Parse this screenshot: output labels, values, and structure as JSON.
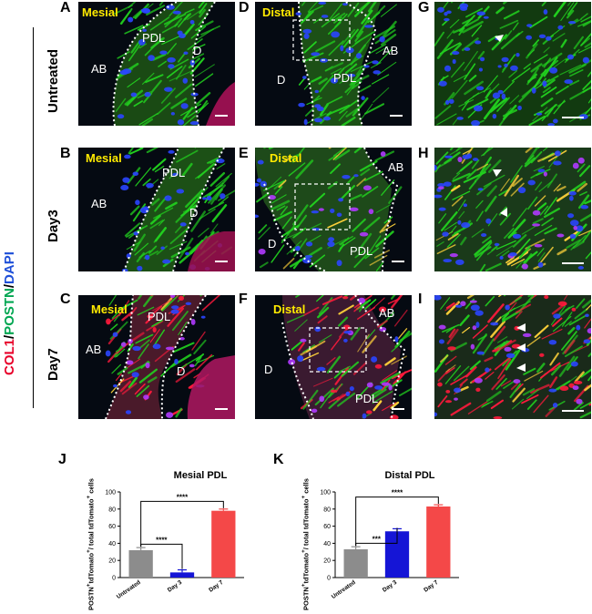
{
  "figure": {
    "stain": [
      {
        "text": "COL1",
        "color": "#e8002a"
      },
      {
        "text": "/",
        "color": "#000000"
      },
      {
        "text": "POSTN",
        "color": "#00a651"
      },
      {
        "text": "/",
        "color": "#000000"
      },
      {
        "text": "DAPI",
        "color": "#1e4fd8"
      }
    ],
    "rows": [
      "Untreated",
      "Day3",
      "Day7"
    ],
    "panels": {
      "A": {
        "letter": "A",
        "side": "Mesial",
        "labels": [
          "PDL",
          "AB",
          "D"
        ]
      },
      "B": {
        "letter": "B",
        "side": "Mesial",
        "labels": [
          "PDL",
          "AB",
          "D"
        ]
      },
      "C": {
        "letter": "C",
        "side": "Mesial",
        "labels": [
          "PDL",
          "AB",
          "D"
        ]
      },
      "D": {
        "letter": "D",
        "side": "Distal",
        "labels": [
          "AB",
          "D",
          "PDL"
        ]
      },
      "E": {
        "letter": "E",
        "side": "Distal",
        "labels": [
          "AB",
          "D",
          "PDL"
        ]
      },
      "F": {
        "letter": "F",
        "side": "Distal",
        "labels": [
          "AB",
          "D",
          "PDL"
        ]
      },
      "G": {
        "letter": "G"
      },
      "H": {
        "letter": "H"
      },
      "I": {
        "letter": "I"
      }
    },
    "colors": {
      "col1": "#ff1a3c",
      "postn": "#22d11f",
      "dapi": "#2a45ff",
      "tissue_bg": "#050a12"
    }
  },
  "chart_data": [
    {
      "panel": "J",
      "type": "bar",
      "title": "Mesial PDL",
      "ylabel": "POSTN+tdTomato+/ total tdTomato+ cells",
      "categories": [
        "Untreated",
        "Day 3",
        "Day 7"
      ],
      "values": [
        32,
        6,
        78
      ],
      "errors": [
        3,
        3,
        2
      ],
      "colors": [
        "#8c8c8c",
        "#1515d6",
        "#f44848"
      ],
      "ylim": [
        0,
        100
      ],
      "yticks": [
        0,
        20,
        40,
        60,
        80,
        100
      ],
      "significance": [
        {
          "from": "Untreated",
          "to": "Day 3",
          "label": "****"
        },
        {
          "from": "Untreated",
          "to": "Day 7",
          "label": "****"
        }
      ]
    },
    {
      "panel": "K",
      "type": "bar",
      "title": "Distal PDL",
      "ylabel": "POSTN+tdTomato+/ total tdTomato+ cells",
      "categories": [
        "Untreated",
        "Day 3",
        "Day 7"
      ],
      "values": [
        33,
        54,
        83
      ],
      "errors": [
        3,
        3,
        2
      ],
      "colors": [
        "#8c8c8c",
        "#1515d6",
        "#f44848"
      ],
      "ylim": [
        0,
        100
      ],
      "yticks": [
        0,
        20,
        40,
        60,
        80,
        100
      ],
      "significance": [
        {
          "from": "Untreated",
          "to": "Day 3",
          "label": "***"
        },
        {
          "from": "Untreated",
          "to": "Day 7",
          "label": "****"
        }
      ]
    }
  ]
}
